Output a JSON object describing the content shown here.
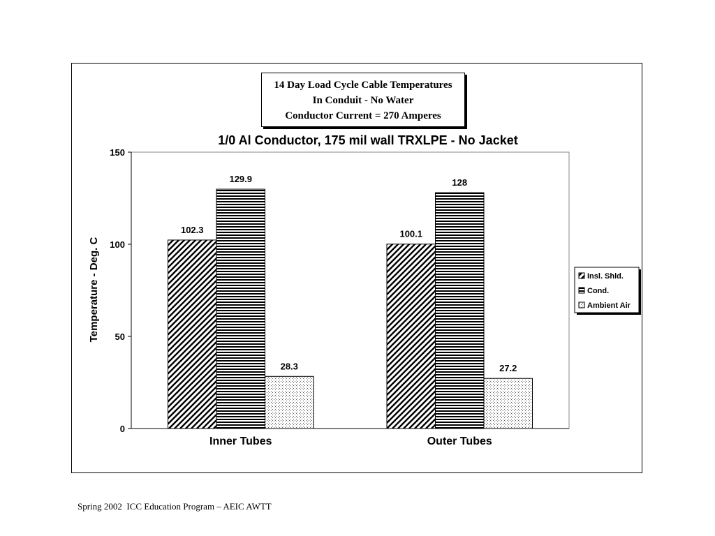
{
  "title_box": {
    "line1": "14 Day Load Cycle Cable Temperatures",
    "line2": "In Conduit - No Water",
    "line3": "Conductor Current = 270 Amperes"
  },
  "footer": "Spring 2002  ICC Education Program – AEIC AWTT",
  "chart_data": {
    "type": "bar",
    "title": "1/0 Al Conductor, 175 mil wall TRXLPE - No Jacket",
    "xlabel": "",
    "ylabel": "Temperature - Deg. C",
    "ylim": [
      0,
      150
    ],
    "yticks": [
      "0",
      "50",
      "100",
      "150"
    ],
    "grid": false,
    "legend_position": "right",
    "categories": [
      "Inner Tubes",
      "Outer Tubes"
    ],
    "series": [
      {
        "name": "Insl. Shld.",
        "values": [
          102.3,
          100.1
        ],
        "labels": [
          "102.3",
          "100.1"
        ],
        "pattern": "diagonal"
      },
      {
        "name": "Cond.",
        "values": [
          129.9,
          128
        ],
        "labels": [
          "129.9",
          "128"
        ],
        "pattern": "horizontal"
      },
      {
        "name": "Ambient Air",
        "values": [
          28.3,
          27.2
        ],
        "labels": [
          "28.3",
          "27.2"
        ],
        "pattern": "dotted"
      }
    ]
  }
}
